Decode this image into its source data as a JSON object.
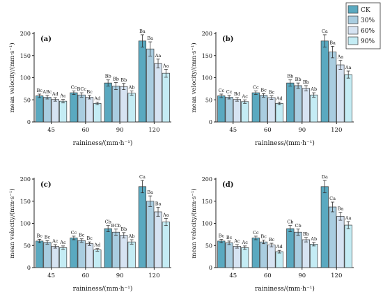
{
  "colors": [
    "#5aa9c0",
    "#a9cde0",
    "#d6e3f2",
    "#c4ecf4"
  ],
  "legend": [
    "CK",
    "30%",
    "60%",
    "90%"
  ],
  "chart_data": [
    {
      "type": "bar",
      "panel": "(a)",
      "xlabel": "raininess/(mm·h⁻¹)",
      "ylabel": "mean velocity/(mm·s⁻¹)",
      "ylim": [
        0,
        200
      ],
      "yticks": [
        "0",
        "50",
        "100",
        "150",
        "200"
      ],
      "categories": [
        "45",
        "60",
        "90",
        "120"
      ],
      "series": [
        {
          "name": "CK",
          "values": [
            59,
            66,
            88,
            183
          ],
          "errors": [
            4,
            4,
            7,
            14
          ],
          "labels": [
            "Bc",
            "Cc",
            "Bb",
            "Ba"
          ]
        },
        {
          "name": "30%",
          "values": [
            56,
            61,
            81,
            165
          ],
          "errors": [
            4,
            5,
            8,
            16
          ],
          "labels": [
            "ABc",
            "BCc",
            "Bb",
            "Ba"
          ]
        },
        {
          "name": "60%",
          "values": [
            51,
            56,
            80,
            132
          ],
          "errors": [
            4,
            4,
            7,
            10
          ],
          "labels": [
            "Ad",
            "Bc",
            "Bb",
            "Aa"
          ]
        },
        {
          "name": "90%",
          "values": [
            47,
            42,
            65,
            110
          ],
          "errors": [
            4,
            3,
            5,
            9
          ],
          "labels": [
            "Ac",
            "Ad",
            "Ab",
            "Aa"
          ]
        }
      ]
    },
    {
      "type": "bar",
      "panel": "(b)",
      "xlabel": "raininess/(mm·h⁻¹)",
      "ylabel": "mean velocity/(mm·s⁻¹)",
      "ylim": [
        0,
        200
      ],
      "yticks": [
        "0",
        "50",
        "100",
        "150",
        "200"
      ],
      "categories": [
        "45",
        "60",
        "90",
        "120"
      ],
      "series": [
        {
          "name": "CK",
          "values": [
            59,
            66,
            88,
            183
          ],
          "errors": [
            4,
            4,
            7,
            14
          ],
          "labels": [
            "Cc",
            "Cc",
            "Bb",
            "Ca"
          ]
        },
        {
          "name": "30%",
          "values": [
            56,
            60,
            82,
            158
          ],
          "errors": [
            4,
            4,
            6,
            13
          ],
          "labels": [
            "Cc",
            "Bc",
            "Bb",
            "Ba"
          ]
        },
        {
          "name": "60%",
          "values": [
            51,
            55,
            76,
            129
          ],
          "errors": [
            4,
            4,
            6,
            10
          ],
          "labels": [
            "Bd",
            "Bc",
            "Bb",
            "Aa"
          ]
        },
        {
          "name": "90%",
          "values": [
            46,
            42,
            61,
            107
          ],
          "errors": [
            4,
            3,
            5,
            8
          ],
          "labels": [
            "Ac",
            "Ad",
            "Ab",
            "Aa"
          ]
        }
      ]
    },
    {
      "type": "bar",
      "panel": "(c)",
      "xlabel": "raininess/(mm·h⁻¹)",
      "ylabel": "mean velocity/(mm·s⁻¹)",
      "ylim": [
        0,
        200
      ],
      "yticks": [
        "0",
        "50",
        "100",
        "150",
        "200"
      ],
      "categories": [
        "45",
        "60",
        "90",
        "120"
      ],
      "series": [
        {
          "name": "CK",
          "values": [
            60,
            67,
            88,
            183
          ],
          "errors": [
            4,
            4,
            7,
            14
          ],
          "labels": [
            "Bc",
            "Cc",
            "Cb",
            "Ca"
          ]
        },
        {
          "name": "30%",
          "values": [
            57,
            61,
            80,
            150
          ],
          "errors": [
            4,
            4,
            7,
            12
          ],
          "labels": [
            "Bc",
            "Bc",
            "BCb",
            "Ba"
          ]
        },
        {
          "name": "60%",
          "values": [
            48,
            54,
            73,
            126
          ],
          "errors": [
            4,
            4,
            6,
            10
          ],
          "labels": [
            "Ac",
            "Bc",
            "Bb",
            "Ba"
          ]
        },
        {
          "name": "90%",
          "values": [
            45,
            40,
            58,
            103
          ],
          "errors": [
            4,
            3,
            5,
            8
          ],
          "labels": [
            "Ac",
            "Ad",
            "Ab",
            "Aa"
          ]
        }
      ]
    },
    {
      "type": "bar",
      "panel": "(d)",
      "xlabel": "raininess/(mm·h⁻¹)",
      "ylabel": "mean velocity/(mm·s⁻¹)",
      "ylim": [
        0,
        200
      ],
      "yticks": [
        "0",
        "50",
        "100",
        "150",
        "200"
      ],
      "categories": [
        "45",
        "60",
        "90",
        "120"
      ],
      "series": [
        {
          "name": "CK",
          "values": [
            60,
            67,
            88,
            183
          ],
          "errors": [
            4,
            4,
            7,
            14
          ],
          "labels": [
            "Bc",
            "Cc",
            "Cb",
            "Da"
          ]
        },
        {
          "name": "30%",
          "values": [
            56,
            58,
            80,
            137
          ],
          "errors": [
            4,
            4,
            7,
            11
          ],
          "labels": [
            "Bc",
            "Bc",
            "Cb",
            "Ca"
          ]
        },
        {
          "name": "60%",
          "values": [
            48,
            51,
            63,
            116
          ],
          "errors": [
            4,
            4,
            5,
            9
          ],
          "labels": [
            "Ac",
            "Bc",
            "Bb",
            "Ba"
          ]
        },
        {
          "name": "90%",
          "values": [
            45,
            36,
            53,
            96
          ],
          "errors": [
            4,
            3,
            4,
            8
          ],
          "labels": [
            "Ac",
            "Ad",
            "Ab",
            "Aa"
          ]
        }
      ]
    }
  ]
}
